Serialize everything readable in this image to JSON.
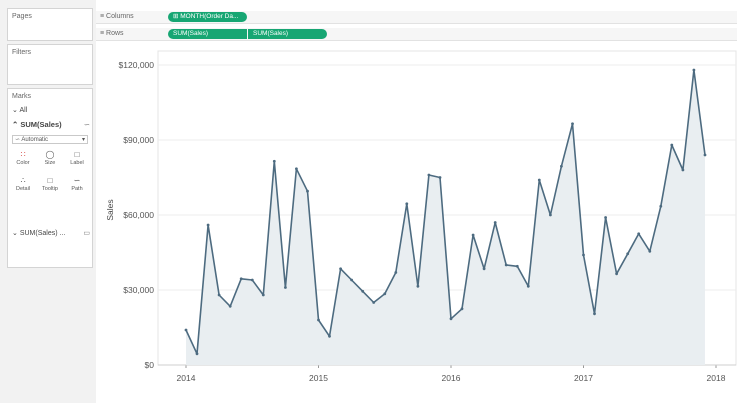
{
  "panes": {
    "pages": "Pages",
    "filters": "Filters",
    "marks": "Marks",
    "all": "All",
    "sum_sales": "SUM(Sales)",
    "mark_type": "Automatic",
    "buttons": [
      "Color",
      "Size",
      "Label",
      "Detail",
      "Tooltip",
      "Path"
    ],
    "sum_sales_collapsed": "SUM(Sales) ..."
  },
  "shelves": {
    "columns_label": "Columns",
    "columns_pill": "MONTH(Order Da...",
    "rows_label": "Rows",
    "rows_pills": [
      "SUM(Sales)",
      "SUM(Sales)"
    ]
  },
  "colors": {
    "line": "#4d6b80",
    "area": "#e9eef1",
    "pill": "#17a673"
  },
  "chart_data": {
    "type": "area",
    "ylabel": "Sales",
    "xlabel": "",
    "x_ticks": [
      "2014",
      "2015",
      "2016",
      "2017",
      "2018"
    ],
    "y_ticks": [
      "$0",
      "$30,000",
      "$60,000",
      "$90,000",
      "$120,000"
    ],
    "ylim": [
      0,
      120000
    ],
    "grid": true,
    "x_start": "2014-01",
    "x_end": "2018-01",
    "series": [
      {
        "x": [
          "2014-01",
          "2014-02",
          "2014-03",
          "2014-04",
          "2014-05",
          "2014-06",
          "2014-07",
          "2014-08",
          "2014-09",
          "2014-10",
          "2014-11",
          "2014-12",
          "2015-01",
          "2015-02",
          "2015-03",
          "2015-04",
          "2015-05",
          "2015-06",
          "2015-07",
          "2015-08",
          "2015-09",
          "2015-10",
          "2015-11",
          "2015-12",
          "2016-01",
          "2016-02",
          "2016-03",
          "2016-04",
          "2016-05",
          "2016-06",
          "2016-07",
          "2016-08",
          "2016-09",
          "2016-10",
          "2016-11",
          "2016-12",
          "2017-01",
          "2017-02",
          "2017-03",
          "2017-04",
          "2017-05",
          "2017-06",
          "2017-07",
          "2017-08",
          "2017-09",
          "2017-10",
          "2017-11",
          "2017-12"
        ],
        "values": [
          14000,
          4500,
          56000,
          28000,
          23500,
          34500,
          34000,
          28000,
          81500,
          31000,
          78500,
          69500,
          18000,
          11500,
          38500,
          34000,
          29500,
          25000,
          28500,
          37000,
          64500,
          31500,
          76000,
          75000,
          18500,
          22500,
          52000,
          38500,
          57000,
          40000,
          39500,
          31500,
          74000,
          60000,
          79500,
          96500,
          44000,
          20500,
          59000,
          36500,
          44500,
          52500,
          45500,
          63500,
          88000,
          78000,
          118000,
          84000
        ]
      }
    ]
  }
}
